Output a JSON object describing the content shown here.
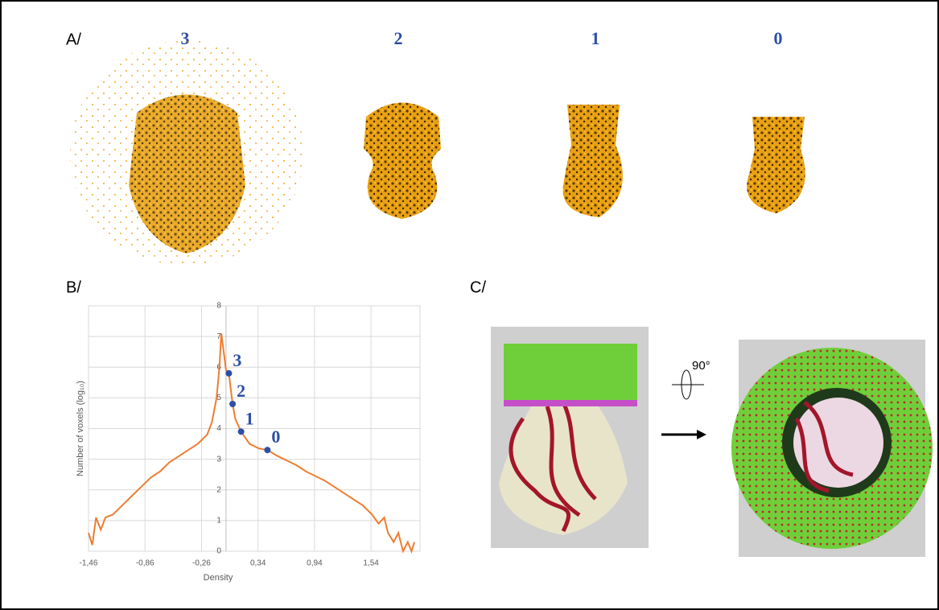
{
  "panel_a": {
    "label": "A/",
    "maps": [
      "3",
      "2",
      "1",
      "0"
    ]
  },
  "chart_data": {
    "type": "line",
    "panel_label": "B/",
    "x_label": "Density",
    "y_label": "Number of voxels (log₁₀)",
    "xlim": [
      -1.46,
      2.06
    ],
    "ylim": [
      0,
      8
    ],
    "xticks": [
      {
        "value": -1.46,
        "label": "-1,46"
      },
      {
        "value": -0.86,
        "label": "-0,86"
      },
      {
        "value": -0.26,
        "label": "-0,26"
      },
      {
        "value": 0.34,
        "label": "0,34"
      },
      {
        "value": 0.94,
        "label": "0,94"
      },
      {
        "value": 1.54,
        "label": "1,54"
      }
    ],
    "yticks": [
      0,
      1,
      2,
      3,
      4,
      5,
      6,
      7,
      8
    ],
    "grid": true,
    "series": [
      {
        "color": "#ed7d31",
        "x": [
          -1.46,
          -1.42,
          -1.38,
          -1.33,
          -1.28,
          -1.2,
          -1.1,
          -1.0,
          -0.9,
          -0.8,
          -0.7,
          -0.6,
          -0.5,
          -0.4,
          -0.3,
          -0.2,
          -0.15,
          -0.1,
          -0.07,
          -0.05,
          -0.02,
          0.0,
          0.03,
          0.07,
          0.1,
          0.16,
          0.25,
          0.35,
          0.44,
          0.55,
          0.65,
          0.75,
          0.85,
          0.95,
          1.05,
          1.15,
          1.25,
          1.35,
          1.45,
          1.55,
          1.62,
          1.68,
          1.72,
          1.78,
          1.83,
          1.88,
          1.93,
          1.97,
          2.0
        ],
        "values": [
          0.6,
          0.2,
          1.1,
          0.7,
          1.1,
          1.2,
          1.5,
          1.8,
          2.1,
          2.4,
          2.6,
          2.9,
          3.1,
          3.3,
          3.5,
          3.8,
          4.2,
          5.0,
          6.0,
          7.1,
          6.4,
          5.9,
          5.8,
          4.8,
          4.3,
          3.9,
          3.5,
          3.35,
          3.3,
          3.1,
          2.95,
          2.8,
          2.6,
          2.45,
          2.3,
          2.1,
          1.9,
          1.7,
          1.5,
          1.2,
          0.9,
          1.1,
          0.6,
          0.3,
          0.6,
          0.0,
          0.3,
          0.0,
          0.3
        ]
      }
    ],
    "points": {
      "color": "#2e4fa8",
      "x": [
        0.03,
        0.07,
        0.16,
        0.44
      ],
      "values": [
        5.8,
        4.8,
        3.9,
        3.3
      ],
      "labels": [
        "3",
        "2",
        "1",
        "0"
      ]
    }
  },
  "panel_c": {
    "label": "C/",
    "angle": "90°"
  }
}
